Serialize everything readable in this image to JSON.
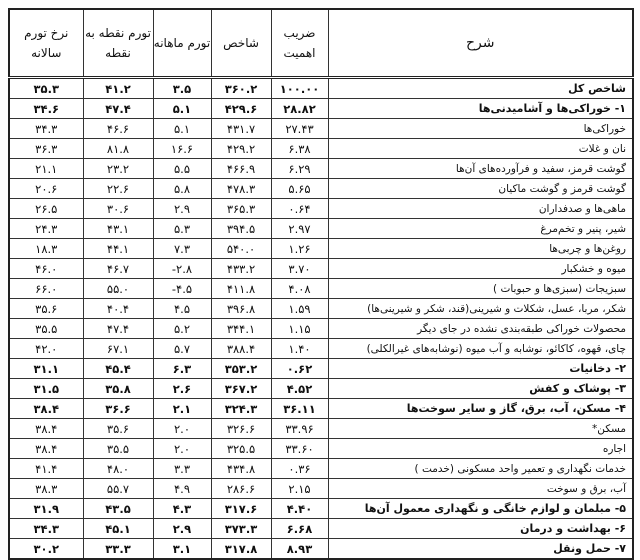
{
  "headers": {
    "description": "شرح",
    "weight": "ضریب اهمیت",
    "index": "شاخص",
    "monthly": "تورم ماهانه",
    "point_to_point": "تورم نقطه به نقطه",
    "annual": "نرخ تورم سالانه"
  },
  "rows": [
    {
      "desc": "شاخص کل",
      "weight": "۱۰۰.۰۰",
      "index": "۳۶۰.۲",
      "monthly": "۳.۵",
      "p2p": "۴۱.۲",
      "annual": "۳۵.۳",
      "bold": true
    },
    {
      "desc": "۱- خوراکی‌ها و آشامیدنی‌ها",
      "weight": "۲۸.۸۲",
      "index": "۴۲۹.۶",
      "monthly": "۵.۱",
      "p2p": "۴۷.۴",
      "annual": "۳۴.۶",
      "bold": true
    },
    {
      "desc": "خوراکی‌ها",
      "weight": "۲۷.۴۳",
      "index": "۴۳۱.۷",
      "monthly": "۵.۱",
      "p2p": "۴۶.۶",
      "annual": "۳۴.۳",
      "bold": false
    },
    {
      "desc": "نان و غلات",
      "weight": "۶.۳۸",
      "index": "۴۲۹.۲",
      "monthly": "۱۶.۶",
      "p2p": "۸۱.۸",
      "annual": "۳۶.۳",
      "bold": false
    },
    {
      "desc": "گوشت قرمز، سفید و فرآورده‌های آن‌ها",
      "weight": "۶.۲۹",
      "index": "۴۶۶.۹",
      "monthly": "۵.۵",
      "p2p": "۲۳.۲",
      "annual": "۲۱.۱",
      "bold": false
    },
    {
      "desc": "گوشت قرمز و گوشت ماکیان",
      "weight": "۵.۶۵",
      "index": "۴۷۸.۳",
      "monthly": "۵.۸",
      "p2p": "۲۲.۶",
      "annual": "۲۰.۶",
      "bold": false
    },
    {
      "desc": "ماهی‌ها و صدفداران",
      "weight": "۰.۶۴",
      "index": "۳۶۵.۳",
      "monthly": "۲.۹",
      "p2p": "۳۰.۶",
      "annual": "۲۶.۵",
      "bold": false
    },
    {
      "desc": "شیر، پنیر و تخم‌مرغ",
      "weight": "۲.۹۷",
      "index": "۳۹۴.۵",
      "monthly": "۵.۳",
      "p2p": "۴۳.۱",
      "annual": "۲۴.۳",
      "bold": false
    },
    {
      "desc": "روغن‌ها و چربی‌ها",
      "weight": "۱.۲۶",
      "index": "۵۴۰.۰",
      "monthly": "۷.۳",
      "p2p": "۴۴.۱",
      "annual": "۱۸.۳",
      "bold": false
    },
    {
      "desc": "میوه و خشکبار",
      "weight": "۳.۷۰",
      "index": "۴۳۳.۲",
      "monthly": "-۲.۸",
      "p2p": "۴۶.۷",
      "annual": "۴۶.۰",
      "bold": false
    },
    {
      "desc": "سبزیجات (سبزی‌ها و حبوبات )",
      "weight": "۴.۰۸",
      "index": "۴۱۱.۸",
      "monthly": "-۴.۵",
      "p2p": "۵۵.۰",
      "annual": "۶۶.۰",
      "bold": false
    },
    {
      "desc": "شکر، مربا، عسل، شکلات و شیرینی(قند، شکر و شیرینی‌ها)",
      "weight": "۱.۵۹",
      "index": "۳۹۶.۸",
      "monthly": "۴.۵",
      "p2p": "۴۰.۴",
      "annual": "۳۵.۶",
      "bold": false
    },
    {
      "desc": "محصولات خوراکی طبقه‌بندی نشده در جای دیگر",
      "weight": "۱.۱۵",
      "index": "۳۴۴.۱",
      "monthly": "۵.۲",
      "p2p": "۴۷.۴",
      "annual": "۳۵.۵",
      "bold": false
    },
    {
      "desc": "چای، قهوه، کاکائو، نوشابه و آب میوه (نوشابه‌های غیرالکلی)",
      "weight": "۱.۴۰",
      "index": "۳۸۸.۴",
      "monthly": "۵.۷",
      "p2p": "۶۷.۱",
      "annual": "۴۲.۰",
      "bold": false
    },
    {
      "desc": "۲- دخانیات",
      "weight": "۰.۶۲",
      "index": "۳۵۳.۲",
      "monthly": "۶.۳",
      "p2p": "۴۵.۴",
      "annual": "۳۱.۱",
      "bold": true
    },
    {
      "desc": "۳- پوشاک و کفش",
      "weight": "۴.۵۲",
      "index": "۳۶۷.۲",
      "monthly": "۲.۶",
      "p2p": "۳۵.۸",
      "annual": "۳۱.۵",
      "bold": true
    },
    {
      "desc": "۴- مسکن، آب، برق، گاز و سایر سوخت‌ها",
      "weight": "۳۶.۱۱",
      "index": "۳۲۴.۳",
      "monthly": "۲.۱",
      "p2p": "۳۶.۶",
      "annual": "۳۸.۴",
      "bold": true
    },
    {
      "desc": "مسکن*",
      "weight": "۳۳.۹۶",
      "index": "۳۲۶.۶",
      "monthly": "۲.۰",
      "p2p": "۳۵.۶",
      "annual": "۳۸.۴",
      "bold": false
    },
    {
      "desc": "اجاره",
      "weight": "۳۳.۶۰",
      "index": "۳۲۵.۵",
      "monthly": "۲.۰",
      "p2p": "۳۵.۵",
      "annual": "۳۸.۴",
      "bold": false
    },
    {
      "desc": "خدمات نگهداری و تعمیر واحد مسکونی (خدمت )",
      "weight": "۰.۳۶",
      "index": "۴۳۴.۸",
      "monthly": "۳.۳",
      "p2p": "۴۸.۰",
      "annual": "۴۱.۴",
      "bold": false
    },
    {
      "desc": "آب، برق و سوخت",
      "weight": "۲.۱۵",
      "index": "۲۸۶.۶",
      "monthly": "۴.۹",
      "p2p": "۵۵.۷",
      "annual": "۳۸.۳",
      "bold": false
    },
    {
      "desc": "۵- مبلمان و لوازم خانگی و نگهداری معمول آن‌ها",
      "weight": "۴.۴۰",
      "index": "۳۱۷.۶",
      "monthly": "۴.۳",
      "p2p": "۴۳.۵",
      "annual": "۳۱.۹",
      "bold": true
    },
    {
      "desc": "۶- بهداشت و درمان",
      "weight": "۶.۶۸",
      "index": "۳۷۳.۳",
      "monthly": "۲.۹",
      "p2p": "۴۵.۱",
      "annual": "۳۴.۳",
      "bold": true
    },
    {
      "desc": "۷- حمل ونقل",
      "weight": "۸.۹۳",
      "index": "۳۱۷.۸",
      "monthly": "۳.۱",
      "p2p": "۳۳.۳",
      "annual": "۳۰.۲",
      "bold": true
    }
  ]
}
